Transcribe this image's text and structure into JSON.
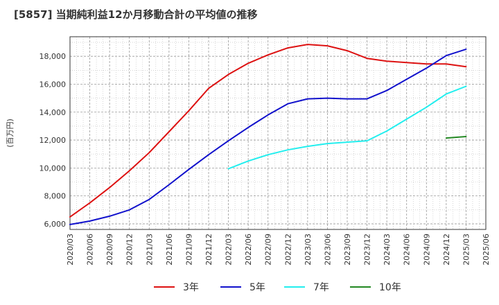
{
  "title": "[5857]  当期純利益12か月移動合計の平均値の推移",
  "chart_data": {
    "type": "line",
    "ylabel": "(百万円)",
    "ylim": [
      5600,
      19400
    ],
    "yticks": [
      6000,
      8000,
      10000,
      12000,
      14000,
      16000,
      18000
    ],
    "ytick_labels": [
      "6,000",
      "8,000",
      "10,000",
      "12,000",
      "14,000",
      "16,000",
      "18,000"
    ],
    "xlim": [
      "2020/03",
      "2025/06"
    ],
    "xtick_labels": [
      "2020/03",
      "2020/06",
      "2020/09",
      "2020/12",
      "2021/03",
      "2021/06",
      "2021/09",
      "2021/12",
      "2022/03",
      "2022/06",
      "2022/09",
      "2022/12",
      "2023/03",
      "2023/06",
      "2023/09",
      "2023/12",
      "2024/03",
      "2024/06",
      "2024/09",
      "2024/12",
      "2025/03",
      "2025/06"
    ],
    "grid": true,
    "legend_position": "bottom",
    "series": [
      {
        "name": "3年",
        "color": "#dd1111",
        "x": [
          "2020/03",
          "2020/06",
          "2020/09",
          "2020/12",
          "2021/03",
          "2021/06",
          "2021/09",
          "2021/12",
          "2022/03",
          "2022/06",
          "2022/09",
          "2022/12",
          "2023/03",
          "2023/06",
          "2023/09",
          "2023/12",
          "2024/03",
          "2024/06",
          "2024/09",
          "2024/12",
          "2025/03"
        ],
        "values": [
          6500,
          7500,
          8600,
          9800,
          11100,
          12600,
          14100,
          15700,
          16700,
          17500,
          18100,
          18600,
          18850,
          18750,
          18400,
          17850,
          17650,
          17550,
          17450,
          17450,
          17250
        ]
      },
      {
        "name": "5年",
        "color": "#1111cc",
        "x": [
          "2020/03",
          "2020/06",
          "2020/09",
          "2020/12",
          "2021/03",
          "2021/06",
          "2021/09",
          "2021/12",
          "2022/03",
          "2022/06",
          "2022/09",
          "2022/12",
          "2023/03",
          "2023/06",
          "2023/09",
          "2023/12",
          "2024/03",
          "2024/06",
          "2024/09",
          "2024/12",
          "2025/03"
        ],
        "values": [
          5950,
          6200,
          6550,
          7000,
          7750,
          8800,
          9900,
          10950,
          11950,
          12900,
          13800,
          14600,
          14950,
          15000,
          14950,
          14950,
          15550,
          16350,
          17150,
          18050,
          18500
        ]
      },
      {
        "name": "7年",
        "color": "#22eeee",
        "x": [
          "2022/03",
          "2022/06",
          "2022/09",
          "2022/12",
          "2023/03",
          "2023/06",
          "2023/09",
          "2023/12",
          "2024/03",
          "2024/06",
          "2024/09",
          "2024/12",
          "2025/03"
        ],
        "values": [
          9950,
          10500,
          10950,
          11300,
          11550,
          11750,
          11850,
          11950,
          12650,
          13500,
          14350,
          15300,
          15850
        ]
      },
      {
        "name": "10年",
        "color": "#228822",
        "x": [
          "2024/12",
          "2025/03"
        ],
        "values": [
          12150,
          12250
        ]
      }
    ]
  }
}
